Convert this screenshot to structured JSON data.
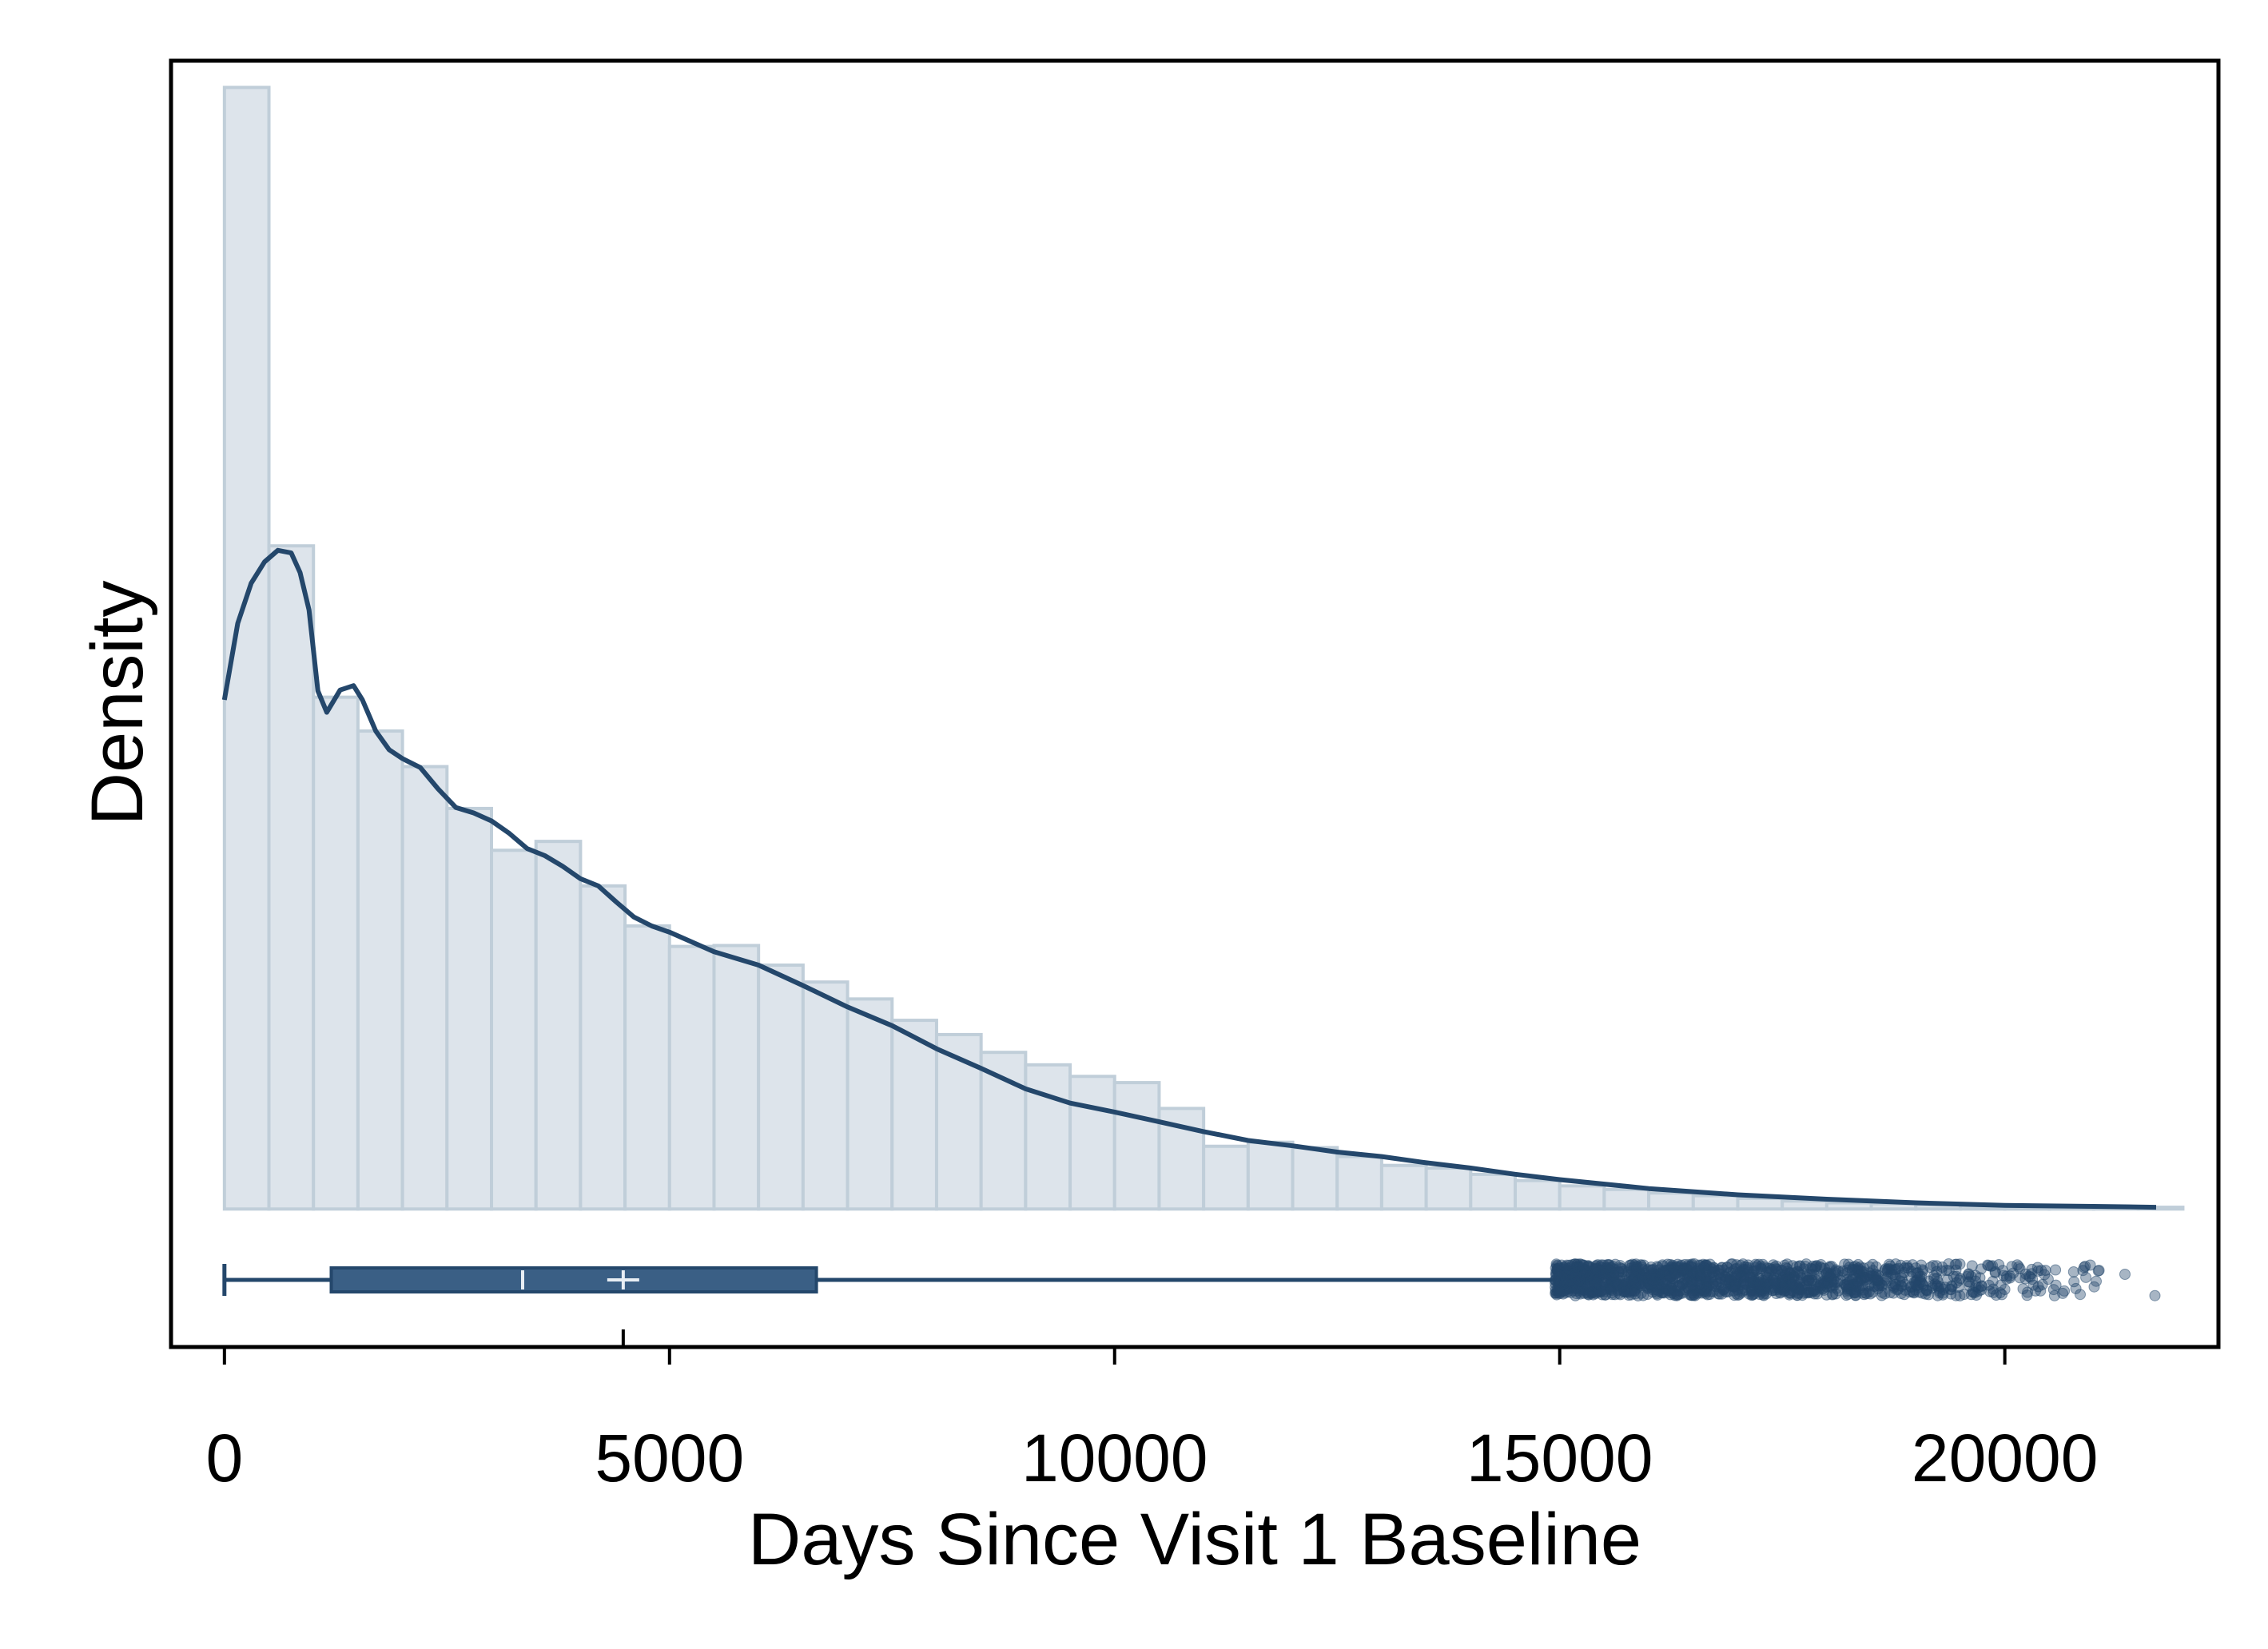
{
  "chart_data": {
    "type": "bar",
    "xlabel": "Days Since Visit 1 Baseline",
    "ylabel": "Density",
    "xlim": [
      -600,
      22400
    ],
    "ylim": [
      -1.55e-05,
      0.000129
    ],
    "x_ticks": [
      0,
      5000,
      10000,
      15000,
      20000
    ],
    "x_tick_labels": [
      "0",
      "5000",
      "10000",
      "15000",
      "20000"
    ],
    "grid": false,
    "legend": "none",
    "histogram": {
      "bin_width": 500,
      "bin_start": 0,
      "densities": [
        0.000126,
        7.45e-05,
        5.75e-05,
        5.37e-05,
        4.97e-05,
        4.5e-05,
        4.03e-05,
        4.13e-05,
        3.63e-05,
        3.18e-05,
        2.95e-05,
        2.96e-05,
        2.74e-05,
        2.55e-05,
        2.36e-05,
        2.12e-05,
        1.96e-05,
        1.76e-05,
        1.62e-05,
        1.49e-05,
        1.42e-05,
        1.13e-05,
        7.05e-06,
        7.5e-06,
        6.9e-06,
        5.9e-06,
        4.9e-06,
        4.6e-06,
        3.9e-06,
        3.2e-06,
        2.6e-06,
        2.2e-06,
        1.8e-06,
        1.5e-06,
        1.2e-06,
        9e-07,
        7e-07,
        6e-07,
        5e-07,
        4e-07,
        3e-07,
        3e-07,
        2e-07,
        2e-07
      ]
    },
    "density_curve": {
      "x": [
        0,
        150,
        300,
        450,
        600,
        750,
        850,
        950,
        1050,
        1150,
        1300,
        1450,
        1550,
        1700,
        1850,
        2000,
        2200,
        2400,
        2600,
        2800,
        3000,
        3200,
        3400,
        3600,
        3800,
        4000,
        4200,
        4400,
        4600,
        4800,
        5000,
        5500,
        6000,
        6500,
        7000,
        7500,
        8000,
        8500,
        9000,
        9500,
        10000,
        10500,
        11000,
        11500,
        12000,
        12500,
        13000,
        13500,
        14000,
        14500,
        15000,
        16000,
        17000,
        18000,
        19000,
        20000,
        21000,
        21700
      ],
      "y": [
        5.72e-05,
        6.58e-05,
        7.03e-05,
        7.27e-05,
        7.4e-05,
        7.37e-05,
        7.15e-05,
        6.73e-05,
        5.82e-05,
        5.58e-05,
        5.83e-05,
        5.88e-05,
        5.72e-05,
        5.37e-05,
        5.16e-05,
        5.06e-05,
        4.96e-05,
        4.72e-05,
        4.51e-05,
        4.45e-05,
        4.36e-05,
        4.22e-05,
        4.05e-05,
        3.97e-05,
        3.85e-05,
        3.71e-05,
        3.63e-05,
        3.45e-05,
        3.28e-05,
        3.18e-05,
        3.11e-05,
        2.89e-05,
        2.74e-05,
        2.51e-05,
        2.27e-05,
        2.06e-05,
        1.8e-05,
        1.58e-05,
        1.35e-05,
        1.19e-05,
        1.09e-05,
        9.8e-06,
        8.7e-06,
        7.7e-06,
        7.1e-06,
        6.4e-06,
        5.9e-06,
        5.2e-06,
        4.6e-06,
        3.9e-06,
        3.3e-06,
        2.3e-06,
        1.6e-06,
        1.1e-06,
        7e-07,
        4e-07,
        3e-07,
        2e-07
      ]
    },
    "boxplot": {
      "whisker_low": 0,
      "q1": 1200,
      "median": 3350,
      "mean": 4480,
      "q3": 6650,
      "whisker_high": 14950,
      "max": 21700
    },
    "colors": {
      "bar_fill": "#dde4eb",
      "bar_edge": "#c0ced9",
      "curve": "#24476b",
      "box": "#3a5f85",
      "outlier": "#24476b"
    }
  }
}
